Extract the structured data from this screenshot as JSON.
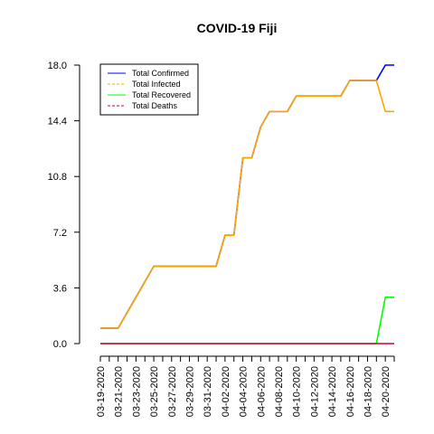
{
  "chart_data": {
    "type": "line",
    "title": "COVID-19 Fiji",
    "xlabel": "",
    "ylabel": "",
    "ylim": [
      0,
      18
    ],
    "y_ticks": [
      "0.0",
      "3.6",
      "7.2",
      "10.8",
      "14.4",
      "18.0"
    ],
    "x": [
      "03-19-2020",
      "03-20-2020",
      "03-21-2020",
      "03-22-2020",
      "03-23-2020",
      "03-24-2020",
      "03-25-2020",
      "03-26-2020",
      "03-27-2020",
      "03-28-2020",
      "03-29-2020",
      "03-30-2020",
      "03-31-2020",
      "04-01-2020",
      "04-02-2020",
      "04-03-2020",
      "04-04-2020",
      "04-05-2020",
      "04-06-2020",
      "04-07-2020",
      "04-08-2020",
      "04-09-2020",
      "04-10-2020",
      "04-11-2020",
      "04-12-2020",
      "04-13-2020",
      "04-14-2020",
      "04-15-2020",
      "04-16-2020",
      "04-17-2020",
      "04-18-2020",
      "04-19-2020",
      "04-20-2020",
      "04-21-2020"
    ],
    "x_tick_labels": [
      "03-19-2020",
      "03-21-2020",
      "03-23-2020",
      "03-25-2020",
      "03-27-2020",
      "03-29-2020",
      "03-31-2020",
      "04-02-2020",
      "04-04-2020",
      "04-06-2020",
      "04-08-2020",
      "04-10-2020",
      "04-12-2020",
      "04-14-2020",
      "04-16-2020",
      "04-18-2020",
      "04-20-2020"
    ],
    "series": [
      {
        "name": "Total Confirmed",
        "color": "#0000ff",
        "dash": "solid",
        "values": [
          1,
          1,
          1,
          2,
          3,
          4,
          5,
          5,
          5,
          5,
          5,
          5,
          5,
          5,
          7,
          7,
          12,
          12,
          14,
          15,
          15,
          15,
          16,
          16,
          16,
          16,
          16,
          16,
          17,
          17,
          17,
          17,
          18,
          18
        ]
      },
      {
        "name": "Total Infected",
        "color": "#ffa500",
        "dash": "dashed",
        "values": [
          1,
          1,
          1,
          2,
          3,
          4,
          5,
          5,
          5,
          5,
          5,
          5,
          5,
          5,
          7,
          7,
          12,
          12,
          14,
          15,
          15,
          15,
          16,
          16,
          16,
          16,
          16,
          16,
          17,
          17,
          17,
          17,
          15,
          15
        ]
      },
      {
        "name": "Total Recovered",
        "color": "#00ff00",
        "dash": "solid",
        "values": [
          0,
          0,
          0,
          0,
          0,
          0,
          0,
          0,
          0,
          0,
          0,
          0,
          0,
          0,
          0,
          0,
          0,
          0,
          0,
          0,
          0,
          0,
          0,
          0,
          0,
          0,
          0,
          0,
          0,
          0,
          0,
          0,
          3,
          3
        ]
      },
      {
        "name": "Total Deaths",
        "color": "#cc0033",
        "dash": "dashed",
        "values": [
          0,
          0,
          0,
          0,
          0,
          0,
          0,
          0,
          0,
          0,
          0,
          0,
          0,
          0,
          0,
          0,
          0,
          0,
          0,
          0,
          0,
          0,
          0,
          0,
          0,
          0,
          0,
          0,
          0,
          0,
          0,
          0,
          0,
          0
        ]
      }
    ],
    "legend_position": "top-left",
    "grid": false
  }
}
